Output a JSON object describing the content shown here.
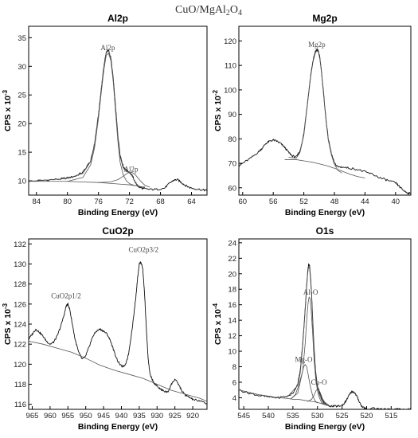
{
  "figure": {
    "title": "CuO/MgAl",
    "title_sub1": "2",
    "title_mid": "O",
    "title_sub2": "4"
  },
  "chart_data": [
    {
      "type": "line",
      "title": "Al2p",
      "xlabel": "Binding Energy (eV)",
      "ylabel_base": "CPS x 10",
      "ylabel_exp": "-3",
      "xlim": [
        85,
        62
      ],
      "ylim": [
        7.5,
        37
      ],
      "xticks": [
        84,
        80,
        76,
        72,
        68,
        64
      ],
      "yticks": [
        10,
        15,
        20,
        25,
        30,
        35
      ],
      "annotations": [
        {
          "text": "Al2p",
          "x": 74.8,
          "y": 32.8
        },
        {
          "text": "Al2p",
          "x": 71.8,
          "y": 11.6
        }
      ],
      "series": [
        {
          "role": "spectrum",
          "x": [
            85,
            83,
            81,
            80,
            79,
            78,
            77,
            76.5,
            76,
            75.6,
            75.3,
            75.0,
            74.7,
            74.4,
            74.1,
            73.8,
            73.5,
            73.2,
            72.8,
            72.4,
            72.0,
            71.6,
            71.2,
            70.8,
            70.2,
            69.5,
            68.5,
            67.5,
            66.8,
            66.3,
            65.8,
            65.3,
            64.8,
            64.2,
            63.5,
            62.5,
            62
          ],
          "y": [
            9.9,
            10.1,
            10.3,
            10.5,
            10.8,
            11.5,
            13.5,
            16.5,
            21.5,
            26.5,
            30.0,
            32.5,
            32.8,
            31.5,
            28.0,
            23.0,
            18.0,
            14.5,
            12.5,
            11.8,
            11.5,
            10.8,
            9.6,
            8.9,
            8.6,
            8.5,
            8.5,
            8.7,
            9.6,
            10.1,
            10.2,
            9.7,
            9.2,
            8.8,
            8.6,
            8.4,
            8.3
          ]
        },
        {
          "role": "fit",
          "x": [
            85,
            80,
            78,
            77,
            76.5,
            76,
            75.6,
            75.3,
            75.0,
            74.7,
            74.4,
            74.1,
            73.8,
            73.5,
            73.2,
            72.8,
            72.4,
            72.0,
            71.6,
            71.2,
            70.8,
            70.4,
            70.0
          ],
          "y": [
            9.9,
            10.4,
            11.3,
            13.4,
            16.4,
            21.4,
            26.4,
            29.9,
            32.4,
            32.7,
            31.4,
            27.9,
            22.8,
            17.8,
            14.2,
            12.2,
            11.6,
            11.5,
            10.7,
            9.6,
            9.1,
            8.9,
            8.8
          ]
        },
        {
          "role": "component",
          "x": [
            80,
            78,
            77,
            76.5,
            76,
            75.6,
            75.3,
            75.0,
            74.7,
            74.4,
            74.1,
            73.8,
            73.5,
            73.2,
            72.8,
            72.4,
            72.0,
            71.4,
            70.8,
            70.0
          ],
          "y": [
            9.9,
            10.6,
            12.8,
            15.8,
            20.9,
            25.9,
            29.4,
            31.9,
            32.3,
            31.0,
            27.4,
            22.2,
            17.0,
            13.2,
            11.0,
            10.0,
            9.5,
            9.2,
            9.0,
            8.9
          ]
        },
        {
          "role": "component",
          "x": [
            76,
            74.5,
            73.5,
            72.8,
            72.2,
            71.7,
            71.2,
            70.6,
            70.0,
            69.4
          ],
          "y": [
            9.7,
            9.8,
            10.2,
            10.8,
            11.4,
            11.5,
            11.0,
            10.0,
            9.2,
            8.9
          ]
        },
        {
          "role": "baseline",
          "x": [
            85,
            80,
            78,
            76,
            75,
            74,
            73,
            72,
            71,
            70.5,
            70
          ],
          "y": [
            9.9,
            9.9,
            9.8,
            9.7,
            9.6,
            9.5,
            9.4,
            9.3,
            9.1,
            8.9,
            8.8
          ]
        }
      ]
    },
    {
      "type": "line",
      "title": "Mg2p",
      "xlabel": "Binding Energy (eV)",
      "ylabel_base": "CPS x 10",
      "ylabel_exp": "-2",
      "xlim": [
        60.5,
        38
      ],
      "ylim": [
        57,
        126
      ],
      "xticks": [
        60,
        56,
        52,
        48,
        44,
        40
      ],
      "yticks": [
        60,
        70,
        80,
        90,
        100,
        110,
        120
      ],
      "annotations": [
        {
          "text": "Mg2p",
          "x": 50.3,
          "y": 117.5
        }
      ],
      "series": [
        {
          "role": "spectrum",
          "x": [
            60.5,
            60,
            59,
            58,
            57.5,
            57,
            56.5,
            56,
            55.5,
            55,
            54.5,
            54,
            53.5,
            53,
            52.5,
            52,
            51.7,
            51.4,
            51.1,
            50.8,
            50.5,
            50.3,
            50.1,
            49.9,
            49.7,
            49.4,
            49.1,
            48.8,
            48.4,
            48,
            47.5,
            47,
            46,
            45,
            44,
            43,
            42,
            41,
            40,
            39.5,
            39,
            38.5,
            38
          ],
          "y": [
            69.0,
            70.0,
            72.0,
            74.5,
            76.0,
            78.0,
            79.0,
            79.5,
            79.0,
            78.0,
            76.5,
            74.5,
            73.0,
            72.5,
            75.0,
            82.0,
            90.0,
            98.0,
            106.0,
            112.0,
            115.5,
            116.5,
            116.0,
            113.0,
            108.0,
            98.0,
            88.0,
            80.0,
            74.0,
            70.0,
            68.5,
            68.5,
            68.0,
            67.5,
            66.5,
            65.5,
            64.0,
            63.0,
            62.0,
            60.5,
            59.0,
            58.0,
            57.5
          ]
        },
        {
          "role": "fit",
          "x": [
            54,
            53,
            52.5,
            52,
            51.7,
            51.4,
            51.1,
            50.8,
            50.5,
            50.3,
            50.1,
            49.9,
            49.7,
            49.4,
            49.1,
            48.8,
            48.4,
            48,
            47.5,
            47
          ],
          "y": [
            72.5,
            72.0,
            74.5,
            81.5,
            89.5,
            97.5,
            105.5,
            111.5,
            115.0,
            116.0,
            115.5,
            112.5,
            107.5,
            97.5,
            87.5,
            79.5,
            73.5,
            69.5,
            67.0,
            66.0
          ]
        },
        {
          "role": "baseline",
          "x": [
            54.5,
            53,
            52,
            51,
            50,
            49,
            48,
            47,
            46,
            45,
            44
          ],
          "y": [
            71.5,
            71.5,
            71.0,
            70.5,
            69.8,
            69.0,
            68.0,
            66.8,
            65.6,
            64.6,
            64.0
          ]
        }
      ]
    },
    {
      "type": "line",
      "title": "CuO2p",
      "xlabel": "Binding Energy (eV)",
      "ylabel_base": "CPS x 10",
      "ylabel_exp": "-3",
      "xlim": [
        966,
        916
      ],
      "ylim": [
        115.5,
        132.5
      ],
      "xticks": [
        965,
        960,
        955,
        950,
        945,
        940,
        935,
        930,
        925,
        920
      ],
      "yticks": [
        116,
        118,
        120,
        122,
        124,
        126,
        128,
        130,
        132
      ],
      "annotations": [
        {
          "text": "CuO2p1/2",
          "x": 955.5,
          "y": 126.6
        },
        {
          "text": "CuO2p3/2",
          "x": 933.8,
          "y": 131.2
        }
      ],
      "series": [
        {
          "role": "spectrum",
          "x": [
            966,
            965,
            964,
            963,
            962,
            961,
            960,
            959,
            958,
            957,
            956,
            955.5,
            955,
            954.5,
            954,
            953,
            952,
            951,
            950,
            949,
            948,
            947,
            946,
            945,
            944,
            943,
            942,
            941,
            940,
            939,
            938,
            937,
            936,
            935.5,
            935,
            934.5,
            934,
            933.5,
            933,
            932.5,
            932,
            931,
            930,
            929,
            928,
            927,
            926,
            925,
            924,
            923,
            922,
            921,
            920,
            918,
            916
          ],
          "y": [
            122.5,
            123.0,
            123.5,
            123.2,
            122.8,
            122.3,
            122.0,
            122.2,
            122.8,
            123.8,
            125.0,
            125.8,
            126.0,
            125.5,
            124.5,
            122.5,
            121.2,
            120.5,
            120.8,
            121.8,
            122.8,
            123.3,
            123.5,
            123.3,
            123.0,
            122.3,
            121.2,
            120.3,
            119.8,
            119.8,
            121.0,
            123.5,
            126.5,
            128.5,
            130.0,
            130.2,
            129.5,
            127.0,
            123.5,
            120.5,
            119.0,
            118.2,
            117.8,
            117.5,
            117.3,
            117.2,
            118.0,
            118.5,
            118.0,
            117.3,
            116.9,
            116.7,
            116.5,
            116.3,
            116.1
          ]
        },
        {
          "role": "baseline",
          "x": [
            966,
            962,
            958,
            954,
            950,
            946,
            942,
            938,
            934,
            930,
            926,
            923,
            921,
            918,
            916
          ],
          "y": [
            122.3,
            122.0,
            121.6,
            121.2,
            120.6,
            119.9,
            119.4,
            119.0,
            118.6,
            118.0,
            117.4,
            117.1,
            116.9,
            116.6,
            116.3
          ]
        }
      ]
    },
    {
      "type": "line",
      "title": "O1s",
      "xlabel": "Binding Energy (eV)",
      "ylabel_base": "CPS x 10",
      "ylabel_exp": "-4",
      "xlim": [
        546,
        511
      ],
      "ylim": [
        2.5,
        24.5
      ],
      "xticks": [
        545,
        540,
        535,
        530,
        525,
        520,
        515
      ],
      "yticks": [
        4,
        6,
        8,
        10,
        12,
        14,
        16,
        18,
        20,
        22,
        24
      ],
      "annotations": [
        {
          "text": "Al-O",
          "x": 531.4,
          "y": 17.3
        },
        {
          "text": "Mg-O",
          "x": 532.8,
          "y": 8.6
        },
        {
          "text": "Cu-O",
          "x": 529.7,
          "y": 5.7
        }
      ],
      "series": [
        {
          "role": "spectrum",
          "x": [
            546,
            544,
            542,
            540,
            538,
            536,
            535,
            534,
            533.5,
            533,
            532.5,
            532.2,
            532.0,
            531.8,
            531.6,
            531.4,
            531.2,
            531.0,
            530.7,
            530.4,
            530.0,
            529.5,
            529,
            528,
            527,
            526,
            525,
            524.5,
            524,
            523.5,
            523,
            522.5,
            522,
            521.5,
            521,
            520.5,
            520,
            518,
            516,
            514,
            512,
            511
          ],
          "y": [
            5.0,
            4.6,
            4.3,
            4.1,
            4.0,
            4.2,
            4.6,
            5.8,
            7.5,
            11.0,
            15.5,
            18.5,
            20.3,
            21.2,
            21.0,
            19.5,
            17.5,
            14.5,
            10.5,
            7.5,
            5.5,
            4.5,
            3.6,
            3.0,
            2.9,
            2.9,
            3.0,
            3.3,
            3.8,
            4.4,
            4.8,
            4.7,
            4.2,
            3.5,
            2.9,
            2.7,
            2.6,
            2.6,
            2.5,
            2.5,
            2.5,
            2.5
          ]
        },
        {
          "role": "fit",
          "x": [
            536,
            534,
            533.5,
            533,
            532.5,
            532.2,
            532.0,
            531.8,
            531.6,
            531.4,
            531.2,
            531.0,
            530.7,
            530.4,
            530.0,
            529.5,
            529,
            528.5
          ],
          "y": [
            4.2,
            5.6,
            7.2,
            10.8,
            15.3,
            18.3,
            20.0,
            20.9,
            20.7,
            19.2,
            17.2,
            14.2,
            10.2,
            7.2,
            5.2,
            4.2,
            3.5,
            3.1
          ]
        },
        {
          "role": "component",
          "x": [
            535.5,
            534,
            533,
            532.5,
            532.2,
            531.9,
            531.7,
            531.5,
            531.3,
            531.0,
            530.7,
            530.3,
            529.8,
            529.2,
            528.5
          ],
          "y": [
            3.8,
            4.6,
            7.5,
            11.0,
            14.0,
            16.3,
            17.0,
            16.8,
            15.5,
            12.5,
            9.0,
            6.0,
            4.3,
            3.4,
            3.1
          ]
        },
        {
          "role": "component",
          "x": [
            535.5,
            534.5,
            533.8,
            533.2,
            532.8,
            532.5,
            532.2,
            531.9,
            531.5,
            531.0,
            530.5,
            530.0
          ],
          "y": [
            3.8,
            4.4,
            5.6,
            7.0,
            8.0,
            8.3,
            8.0,
            7.0,
            5.6,
            4.3,
            3.6,
            3.3
          ]
        },
        {
          "role": "component",
          "x": [
            532.0,
            531.2,
            530.7,
            530.3,
            530.0,
            529.7,
            529.4,
            529.0,
            528.5,
            528.0
          ],
          "y": [
            3.5,
            3.8,
            4.3,
            4.9,
            5.1,
            5.0,
            4.6,
            3.9,
            3.4,
            3.2
          ]
        },
        {
          "role": "baseline",
          "x": [
            546,
            542,
            538,
            536,
            535,
            534,
            533,
            532,
            531,
            530,
            529,
            528,
            527
          ],
          "y": [
            5.0,
            4.4,
            4.0,
            3.9,
            3.8,
            3.8,
            3.7,
            3.6,
            3.5,
            3.4,
            3.2,
            3.0,
            2.9
          ]
        }
      ]
    }
  ]
}
